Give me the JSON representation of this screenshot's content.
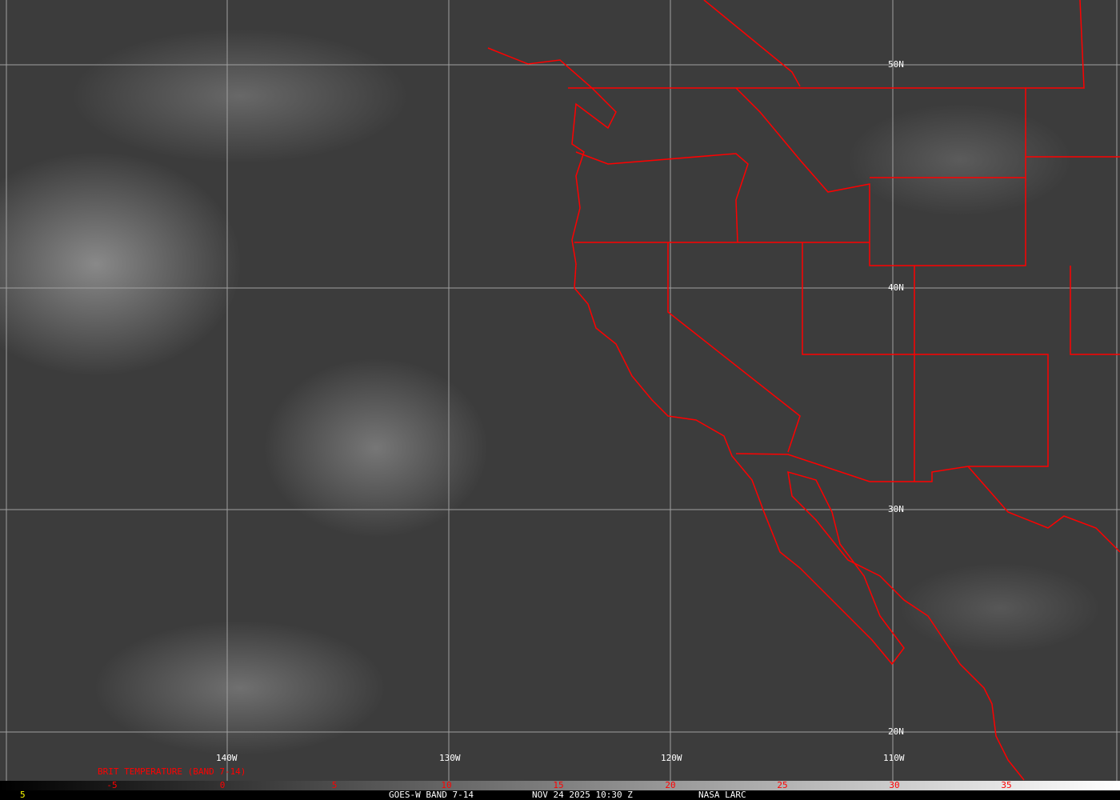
{
  "map": {
    "longitude_labels": [
      "140W",
      "130W",
      "120W",
      "110W"
    ],
    "latitude_labels": [
      "50N",
      "40N",
      "30N",
      "20N"
    ],
    "border_color": "#ff0000",
    "grid_color": "#a0a0a0"
  },
  "legend": {
    "title": "BRIT TEMPERATURE (BAND 7-14)",
    "ticks": [
      "-5",
      "0",
      "5",
      "10",
      "15",
      "20",
      "25",
      "30",
      "35"
    ],
    "tick_color": "#ff0000"
  },
  "footer": {
    "frame": "5",
    "satellite": "GOES-W BAND 7-14",
    "datetime": "NOV 24 2025 10:30 Z",
    "source": "NASA LARC"
  }
}
